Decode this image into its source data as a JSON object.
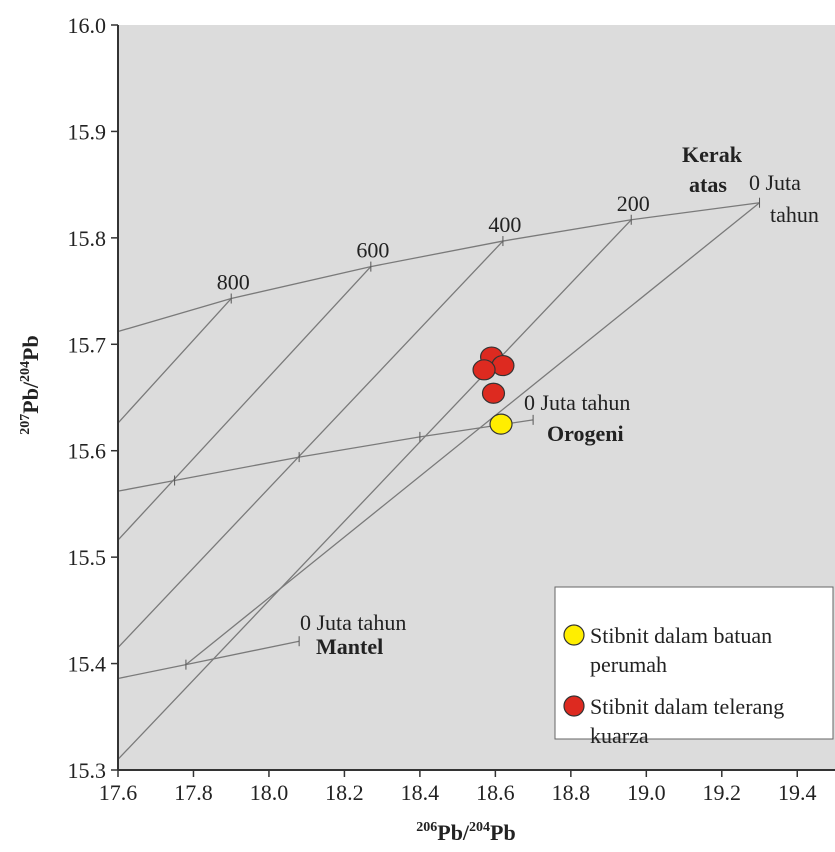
{
  "chart_data": {
    "type": "scatter",
    "xlabel": {
      "sup1": "206",
      "base1": "Pb/",
      "sup2": "204",
      "base2": "Pb"
    },
    "ylabel": {
      "sup1": "207",
      "base1": "Pb/",
      "sup2": "204",
      "base2": "Pb"
    },
    "xlim": [
      17.6,
      19.5
    ],
    "ylim": [
      15.3,
      16.0
    ],
    "xticks": [
      "17.6",
      "17.8",
      "18.0",
      "18.2",
      "18.4",
      "18.6",
      "18.8",
      "19.0",
      "19.2",
      "19.4"
    ],
    "yticks": [
      "15.3",
      "15.4",
      "15.5",
      "15.6",
      "15.7",
      "15.8",
      "15.9",
      "16.0"
    ],
    "grid": false,
    "legend_position": "bottom-right",
    "model_curves": [
      {
        "name": "Kerak atas",
        "points": [
          [
            17.6,
            15.712
          ],
          [
            17.9,
            15.743
          ],
          [
            18.27,
            15.773
          ],
          [
            18.62,
            15.797
          ],
          [
            18.96,
            15.817
          ],
          [
            19.3,
            15.833
          ]
        ],
        "age_markers": [
          {
            "x": 17.9,
            "y": 15.743,
            "label": "800"
          },
          {
            "x": 18.27,
            "y": 15.773,
            "label": "600"
          },
          {
            "x": 18.62,
            "y": 15.797,
            "label": "400"
          },
          {
            "x": 18.96,
            "y": 15.817,
            "label": "200"
          }
        ],
        "zero_label": [
          "0 Juta",
          "tahun"
        ],
        "title_label": [
          "Kerak",
          "atas"
        ]
      },
      {
        "name": "Orogeni",
        "points": [
          [
            17.6,
            15.562
          ],
          [
            17.75,
            15.572
          ],
          [
            18.08,
            15.594
          ],
          [
            18.4,
            15.613
          ],
          [
            18.7,
            15.629
          ]
        ],
        "zero_label": [
          "0 Juta tahun"
        ],
        "title_label": [
          "Orogeni"
        ]
      },
      {
        "name": "Mantel",
        "points": [
          [
            17.6,
            15.386
          ],
          [
            17.78,
            15.399
          ],
          [
            18.08,
            15.421
          ]
        ],
        "zero_label": [
          "0 Juta tahun"
        ],
        "title_label": [
          "Mantel"
        ]
      }
    ],
    "isochrons": [
      [
        [
          17.6,
          15.626
        ],
        [
          17.9,
          15.743
        ]
      ],
      [
        [
          17.6,
          15.516
        ],
        [
          18.27,
          15.773
        ]
      ],
      [
        [
          17.6,
          15.415
        ],
        [
          18.62,
          15.797
        ]
      ],
      [
        [
          17.6,
          15.31
        ],
        [
          18.96,
          15.817
        ]
      ],
      [
        [
          17.78,
          15.399
        ],
        [
          19.3,
          15.833
        ]
      ]
    ],
    "series": [
      {
        "name": "Stibnit dalam batuan perumah",
        "label_lines": [
          "Stibnit dalam batuan",
          "perumah"
        ],
        "color": "#ffee00",
        "points": [
          [
            18.615,
            15.625
          ]
        ]
      },
      {
        "name": "Stibnit dalam telerang kuarza",
        "label_lines": [
          "Stibnit dalam telerang",
          "kuarza"
        ],
        "color": "#dd2a20",
        "points": [
          [
            18.59,
            15.688
          ],
          [
            18.62,
            15.68
          ],
          [
            18.57,
            15.676
          ],
          [
            18.595,
            15.654
          ]
        ]
      }
    ],
    "colors": {
      "plot_bg": "#dcdcdc",
      "line": "#7a7a7a",
      "axis": "#333333"
    }
  }
}
